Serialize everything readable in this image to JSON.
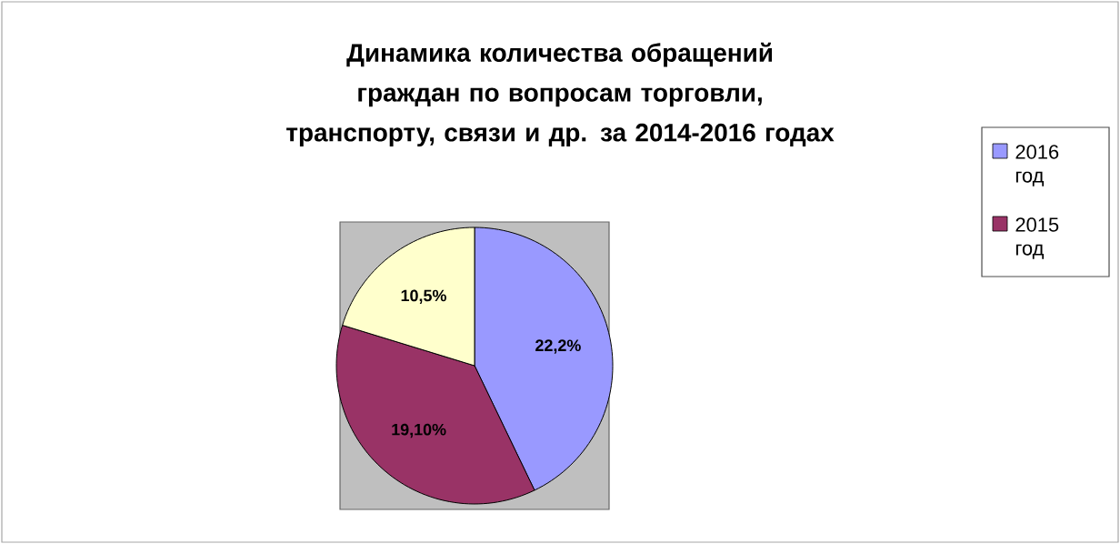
{
  "chart_data": {
    "type": "pie",
    "title": "Динамика количества обращений граждан по вопросам торговли, транспорту, связи и др. за 2014-2016 годах",
    "categories": [
      "2016 год",
      "2015 год",
      null
    ],
    "values": [
      22.2,
      19.1,
      10.5
    ],
    "value_labels": [
      "22,2%",
      "19,10%",
      "10,5%"
    ],
    "colors": [
      "#9999ff",
      "#993366",
      "#ffffcc"
    ],
    "legend": "right"
  }
}
